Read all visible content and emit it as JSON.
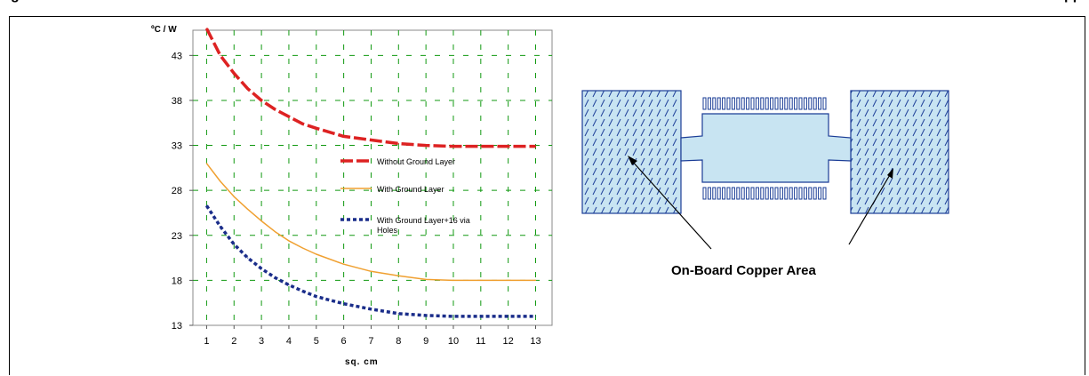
{
  "header": {
    "left_fragment": "g",
    "right_fragment": "pp"
  },
  "chart_data": {
    "type": "line",
    "y_unit_label": "ºC / W",
    "xlabel": "sq. cm",
    "x_ticks": [
      1,
      2,
      3,
      4,
      5,
      6,
      7,
      8,
      9,
      10,
      11,
      12,
      13
    ],
    "y_ticks": [
      13,
      18,
      23,
      28,
      33,
      38,
      43
    ],
    "xlim": [
      0.5,
      13.6
    ],
    "ylim": [
      13,
      45.8
    ],
    "grid": true,
    "grid_color": "#119911",
    "legend_placement": "center-right",
    "series": [
      {
        "name": "Without Ground Layer",
        "color": "#dd2222",
        "style": "dashed-thick",
        "x": [
          1,
          1.5,
          2,
          2.5,
          3,
          3.5,
          4,
          4.5,
          5,
          6,
          7,
          8,
          9,
          10,
          11,
          12,
          13
        ],
        "y": [
          46,
          43,
          41,
          39.3,
          38,
          37,
          36.2,
          35.4,
          34.9,
          34,
          33.6,
          33.2,
          33,
          32.9,
          32.9,
          32.9,
          32.9
        ]
      },
      {
        "name": "With Ground Layer",
        "color": "#f0a030",
        "style": "solid",
        "x": [
          1,
          1.5,
          2,
          2.5,
          3,
          3.5,
          4,
          4.5,
          5,
          6,
          7,
          8,
          9,
          10,
          11,
          12,
          13
        ],
        "y": [
          31,
          29,
          27.3,
          25.9,
          24.6,
          23.4,
          22.4,
          21.6,
          20.9,
          19.8,
          19,
          18.5,
          18.1,
          18,
          18,
          18,
          18
        ]
      },
      {
        "name": "With Ground Layer+16 via Holes",
        "color": "#1a2d8a",
        "style": "dotted-thick",
        "x": [
          1,
          1.5,
          2,
          2.5,
          3,
          3.5,
          4,
          4.5,
          5,
          6,
          7,
          8,
          9,
          10,
          11,
          12,
          13
        ],
        "y": [
          26.3,
          24,
          22,
          20.5,
          19.3,
          18.3,
          17.5,
          16.8,
          16.2,
          15.4,
          14.8,
          14.3,
          14.1,
          14,
          14,
          14,
          14
        ]
      }
    ]
  },
  "diagram": {
    "caption": "On-Board Copper Area",
    "hatch_color": "#1a3c96",
    "fill_color": "#c8e4f2"
  }
}
